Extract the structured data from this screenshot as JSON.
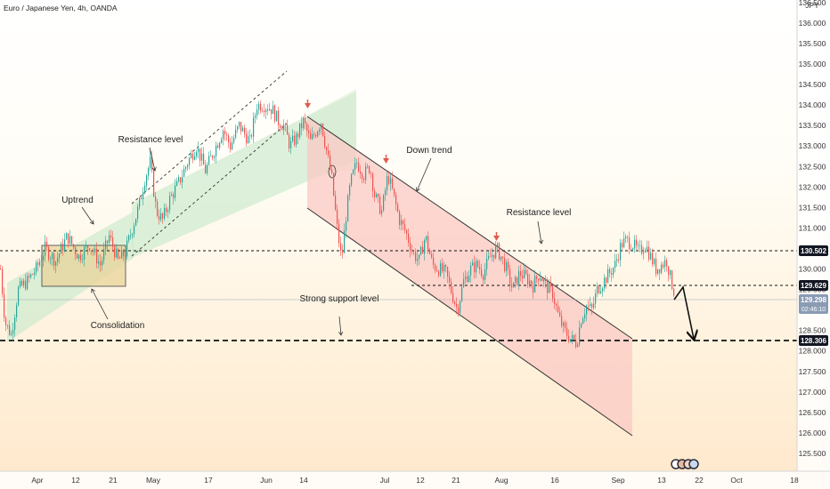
{
  "title": "Euro / Japanese Yen, 4h, OANDA",
  "currency": "JPY",
  "colors": {
    "up": "#26a69a",
    "down": "#ef5350",
    "channel_green": "#c9e9cc",
    "channel_red": "#fbc9c4",
    "consolidation": "#e9d49a",
    "arrow_red": "#e05a4e",
    "badge_dark": "#131722",
    "badge_price": "#8a9bb3"
  },
  "chart_data": {
    "type": "candlestick",
    "ylim": [
      125.2,
      137.2
    ],
    "y_ticks": [
      "125.500",
      "126.000",
      "126.500",
      "127.000",
      "127.500",
      "128.000",
      "128.500",
      "129.000",
      "129.500",
      "130.000",
      "130.500",
      "131.000",
      "131.500",
      "132.000",
      "132.500",
      "133.000",
      "133.500",
      "134.000",
      "134.500",
      "135.000",
      "135.500",
      "136.000",
      "136.500"
    ],
    "x_ticks": [
      "Apr",
      "12",
      "21",
      "May",
      "17",
      "Jun",
      "14",
      "Jul",
      "12",
      "21",
      "Aug",
      "16",
      "Sep",
      "13",
      "22",
      "Oct",
      "18"
    ],
    "levels": [
      {
        "price": 130.502,
        "label": "130.502",
        "style": "dashed"
      },
      {
        "price": 129.629,
        "label": "129.629",
        "style": "dashed"
      },
      {
        "price": 128.306,
        "label": "128.306",
        "style": "bold-dashed"
      }
    ],
    "current_price": {
      "price": 129.298,
      "label": "129.298",
      "countdown": "02:46:10"
    },
    "annotations": [
      "Uptrend",
      "Resistance level",
      "Consolidation",
      "Down trend",
      "Resistance level",
      "Strong support level"
    ],
    "path": [
      [
        0,
        130.0
      ],
      [
        5,
        128.7
      ],
      [
        12,
        128.4
      ],
      [
        20,
        129.5
      ],
      [
        30,
        129.7
      ],
      [
        40,
        130.0
      ],
      [
        50,
        130.5
      ],
      [
        62,
        130.2
      ],
      [
        75,
        130.8
      ],
      [
        88,
        130.3
      ],
      [
        100,
        130.6
      ],
      [
        112,
        130.1
      ],
      [
        122,
        130.8
      ],
      [
        132,
        130.2
      ],
      [
        140,
        130.4
      ],
      [
        148,
        131.0
      ],
      [
        155,
        131.5
      ],
      [
        162,
        132.2
      ],
      [
        168,
        132.6
      ],
      [
        175,
        131.4
      ],
      [
        182,
        131.2
      ],
      [
        190,
        131.7
      ],
      [
        200,
        132.1
      ],
      [
        210,
        132.6
      ],
      [
        220,
        133.0
      ],
      [
        230,
        132.4
      ],
      [
        240,
        132.9
      ],
      [
        250,
        133.4
      ],
      [
        258,
        133.0
      ],
      [
        268,
        133.5
      ],
      [
        280,
        133.1
      ],
      [
        288,
        134.0
      ],
      [
        296,
        134.0
      ],
      [
        305,
        133.9
      ],
      [
        312,
        133.6
      ],
      [
        318,
        133.5
      ],
      [
        325,
        133.0
      ],
      [
        332,
        133.2
      ],
      [
        340,
        133.6
      ],
      [
        348,
        133.1
      ],
      [
        355,
        133.4
      ],
      [
        360,
        133.6
      ],
      [
        365,
        133.0
      ],
      [
        372,
        132.2
      ],
      [
        378,
        131.0
      ],
      [
        383,
        130.2
      ],
      [
        388,
        131.3
      ],
      [
        393,
        132.1
      ],
      [
        400,
        132.6
      ],
      [
        408,
        132.3
      ],
      [
        415,
        132.5
      ],
      [
        420,
        131.8
      ],
      [
        428,
        131.4
      ],
      [
        435,
        132.3
      ],
      [
        440,
        131.9
      ],
      [
        448,
        131.2
      ],
      [
        455,
        130.9
      ],
      [
        463,
        130.4
      ],
      [
        470,
        130.2
      ],
      [
        477,
        130.8
      ],
      [
        485,
        130.1
      ],
      [
        492,
        130.0
      ],
      [
        500,
        129.9
      ],
      [
        507,
        129.4
      ],
      [
        513,
        129.0
      ],
      [
        520,
        129.7
      ],
      [
        528,
        130.0
      ],
      [
        535,
        130.1
      ],
      [
        542,
        129.9
      ],
      [
        550,
        130.3
      ],
      [
        557,
        130.5
      ],
      [
        562,
        130.3
      ],
      [
        568,
        130.0
      ],
      [
        575,
        129.5
      ],
      [
        583,
        129.9
      ],
      [
        590,
        129.8
      ],
      [
        598,
        129.6
      ],
      [
        605,
        129.9
      ],
      [
        612,
        129.6
      ],
      [
        620,
        129.4
      ],
      [
        627,
        128.8
      ],
      [
        633,
        128.5
      ],
      [
        640,
        128.3
      ],
      [
        647,
        128.2
      ],
      [
        652,
        128.8
      ],
      [
        658,
        129.1
      ],
      [
        664,
        129.0
      ],
      [
        670,
        129.5
      ],
      [
        677,
        129.7
      ],
      [
        684,
        129.9
      ],
      [
        690,
        130.1
      ],
      [
        697,
        130.6
      ],
      [
        703,
        130.7
      ],
      [
        710,
        130.6
      ],
      [
        717,
        130.4
      ],
      [
        724,
        130.6
      ],
      [
        730,
        130.3
      ],
      [
        736,
        130.0
      ],
      [
        742,
        130.1
      ],
      [
        748,
        130.2
      ],
      [
        753,
        129.7
      ],
      [
        757,
        129.4
      ]
    ]
  }
}
